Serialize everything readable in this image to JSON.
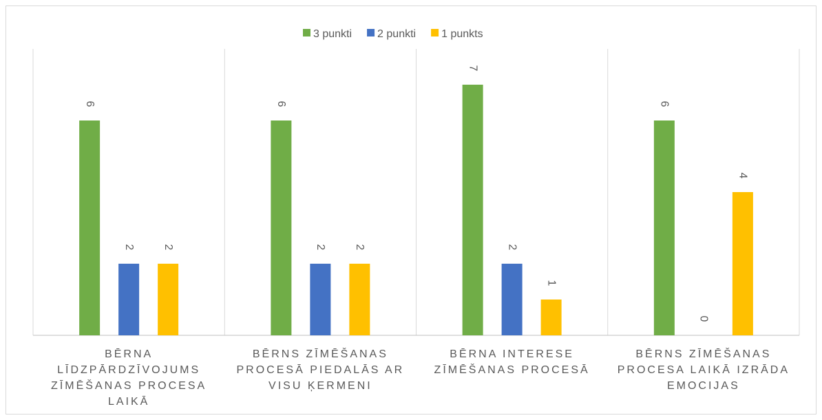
{
  "chart_data": {
    "type": "bar",
    "categories": [
      "BĒRNA LĪDZPĀRDZĪVOJUMS ZĪMĒŠANAS PROCESA LAIKĀ",
      "BĒRNS ZĪMĒŠANAS PROCESĀ PIEDALĀS AR VISU ĶERMENI",
      "BĒRNA INTERESE ZĪMĒŠANAS PROCESĀ",
      "BĒRNS ZĪMĒŠANAS PROCESA LAIKĀ IZRĀDA EMOCIJAS"
    ],
    "series": [
      {
        "name": "3 punkti",
        "color": "#70ad47",
        "values": [
          6,
          6,
          7,
          6
        ]
      },
      {
        "name": "2 punkti",
        "color": "#4472c4",
        "values": [
          2,
          2,
          2,
          0
        ]
      },
      {
        "name": "1 punkts",
        "color": "#ffc000",
        "values": [
          2,
          2,
          1,
          4
        ]
      }
    ],
    "ylim": [
      0,
      8
    ],
    "legend": "top"
  }
}
